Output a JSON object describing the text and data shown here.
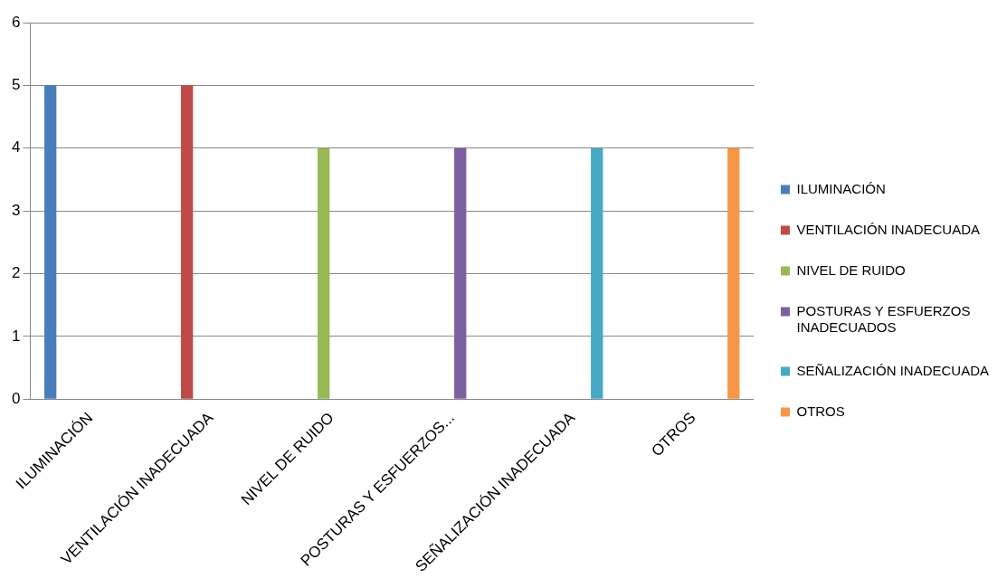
{
  "chart_data": {
    "type": "bar",
    "categories": [
      "ILUMINACIÓN",
      "VENTILACIÓN INADECUADA",
      "NIVEL DE RUIDO",
      "POSTURAS Y ESFUERZOS...",
      "SEÑALIZACIÓN INADECUADA",
      "OTROS"
    ],
    "series": [
      {
        "name": "ILUMINACIÓN",
        "color": "#4a7ebb",
        "values": [
          5,
          null,
          null,
          null,
          null,
          null
        ]
      },
      {
        "name": "VENTILACIÓN INADECUADA",
        "color": "#be4b48",
        "values": [
          null,
          5,
          null,
          null,
          null,
          null
        ]
      },
      {
        "name": "NIVEL DE RUIDO",
        "color": "#98b954",
        "values": [
          null,
          null,
          4,
          null,
          null,
          null
        ]
      },
      {
        "name": "POSTURAS Y ESFUERZOS INADECUADOS",
        "color": "#7d60a0",
        "values": [
          null,
          null,
          null,
          4,
          null,
          null
        ]
      },
      {
        "name": "SEÑALIZACIÓN INADECUADA",
        "color": "#46aac5",
        "values": [
          null,
          null,
          null,
          null,
          4,
          null
        ]
      },
      {
        "name": "OTROS",
        "color": "#f79646",
        "values": [
          null,
          null,
          null,
          null,
          null,
          4
        ]
      }
    ],
    "ylim": [
      0,
      6
    ],
    "yticks": [
      0,
      1,
      2,
      3,
      4,
      5,
      6
    ],
    "grid": "y",
    "legend": "right"
  }
}
